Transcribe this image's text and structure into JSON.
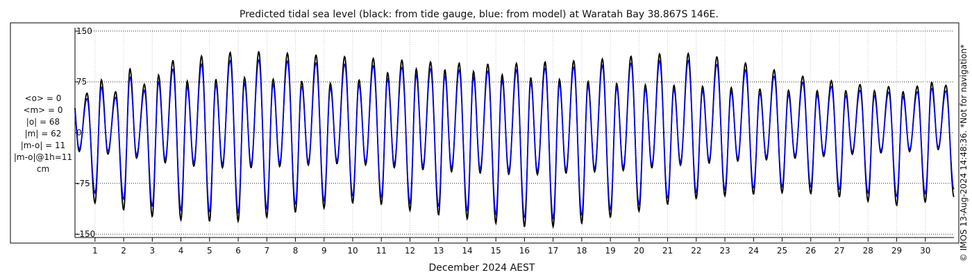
{
  "chart_data": {
    "type": "line",
    "title": "Predicted tidal sea level (black: from tide gauge, blue: from model) at Waratah Bay 38.867S 146E.",
    "xlabel": "December 2024 AEST",
    "ylabel": "",
    "xlim": [
      0.3,
      31.0
    ],
    "ylim": [
      -155,
      155
    ],
    "yticks": [
      -150,
      -75,
      0,
      75,
      150
    ],
    "xticks": [
      "1",
      "2",
      "3",
      "4",
      "5",
      "6",
      "7",
      "8",
      "9",
      "10",
      "11",
      "12",
      "13",
      "14",
      "15",
      "16",
      "17",
      "18",
      "19",
      "20",
      "21",
      "22",
      "23",
      "24",
      "25",
      "26",
      "27",
      "28",
      "29",
      "30"
    ],
    "grid": true,
    "series": [
      {
        "name": "black: from tide gauge",
        "color": "#000000"
      },
      {
        "name": "blue: from model",
        "color": "#0000ff"
      }
    ],
    "x_day": [
      0.5,
      1.5,
      2.5,
      3.5,
      4.5,
      5.5,
      6.5,
      7.5,
      8.5,
      9.5,
      10.5,
      11.5,
      12.5,
      13.5,
      14.5,
      15.5,
      16.5,
      17.5,
      18.5,
      19.5,
      20.5,
      21.5,
      22.5,
      23.5,
      24.5,
      25.5,
      26.5,
      27.5,
      28.5,
      29.5,
      30.5
    ],
    "obs_high1": [
      58,
      60,
      62,
      105,
      112,
      118,
      120,
      118,
      115,
      113,
      110,
      108,
      105,
      103,
      101,
      102,
      104,
      106,
      108,
      112,
      116,
      118,
      114,
      105,
      95,
      85,
      78,
      72,
      68,
      68,
      70
    ],
    "obs_high2": [
      60,
      85,
      98,
      80,
      75,
      80,
      82,
      78,
      75,
      72,
      80,
      92,
      95,
      92,
      90,
      84,
      80,
      78,
      75,
      72,
      70,
      70,
      68,
      66,
      64,
      62,
      62,
      62,
      62,
      60,
      80
    ],
    "obs_low1": [
      -28,
      -32,
      -38,
      -45,
      -50,
      -52,
      -52,
      -50,
      -48,
      -46,
      -48,
      -52,
      -55,
      -58,
      -60,
      -62,
      -62,
      -60,
      -58,
      -56,
      -52,
      -48,
      -45,
      -42,
      -40,
      -38,
      -35,
      -32,
      -30,
      -28,
      -25
    ],
    "obs_low2": [
      -100,
      -108,
      -120,
      -128,
      -130,
      -132,
      -130,
      -120,
      -115,
      -108,
      -100,
      -112,
      -118,
      -125,
      -130,
      -138,
      -140,
      -138,
      -130,
      -120,
      -112,
      -100,
      -95,
      -92,
      -90,
      -88,
      -92,
      -98,
      -105,
      -110,
      -95
    ],
    "model_scale": [
      0.86,
      0.86,
      0.87,
      0.88,
      0.89,
      0.9,
      0.9,
      0.9,
      0.9,
      0.9,
      0.9,
      0.9,
      0.9,
      0.9,
      0.9,
      0.9,
      0.91,
      0.91,
      0.91,
      0.91,
      0.91,
      0.91,
      0.9,
      0.9,
      0.9,
      0.89,
      0.89,
      0.88,
      0.88,
      0.88,
      0.88
    ]
  },
  "stats": [
    "<o> = 0",
    "<m> = 0",
    "|o| = 68",
    "|m| = 62",
    "|m-o| = 11",
    "|m-o|@1h=11",
    "cm"
  ],
  "side_note": "© IMOS 13-Aug-2024 14:48:36. *Not for navigation*"
}
